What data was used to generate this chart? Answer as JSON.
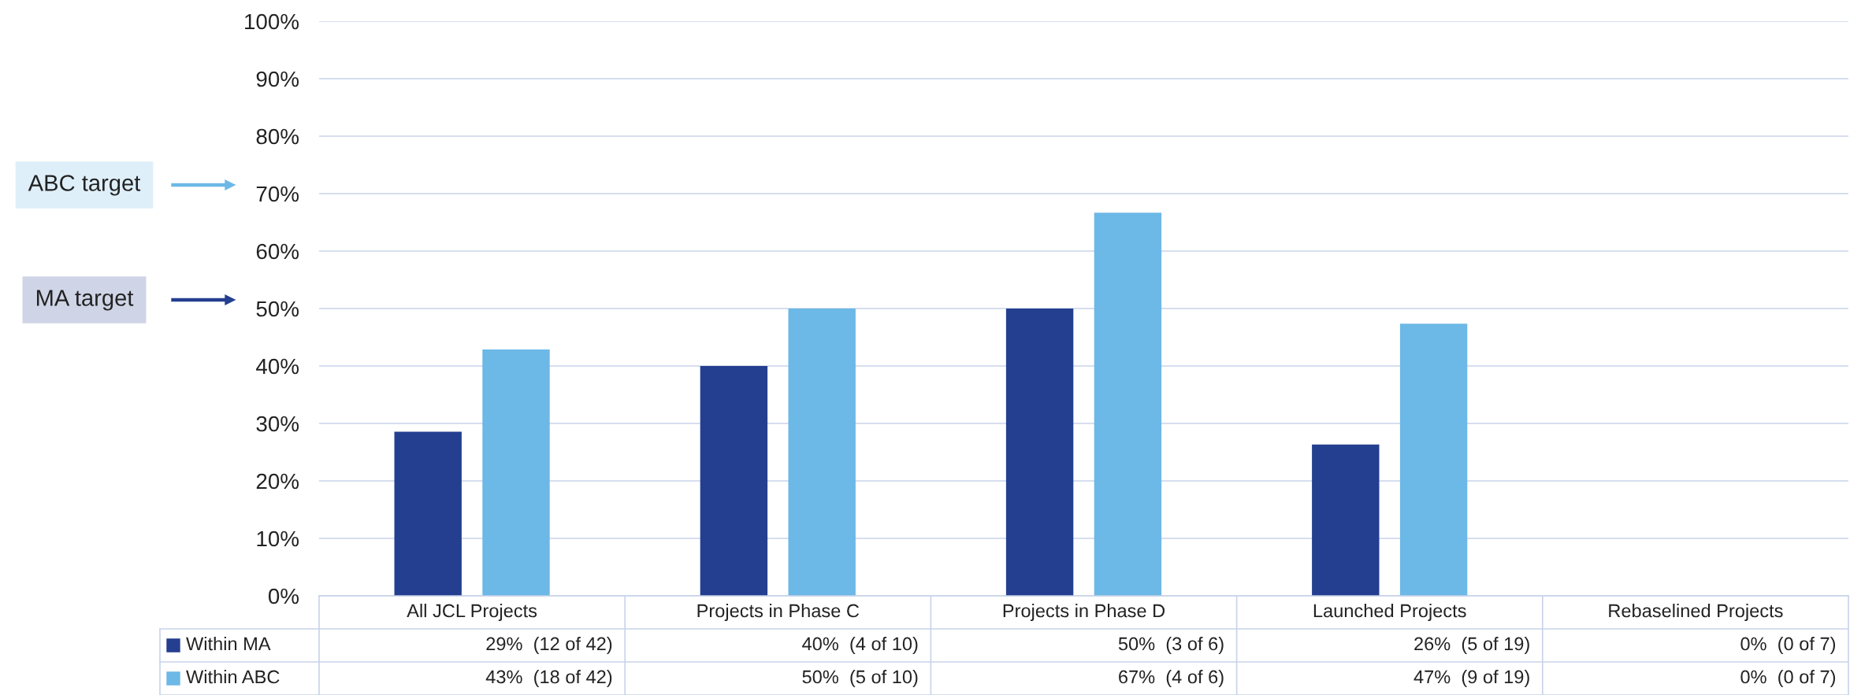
{
  "chart_data": {
    "type": "bar",
    "categories": [
      "All JCL Projects",
      "Projects in Phase C",
      "Projects in Phase D",
      "Launched Projects",
      "Rebaselined Projects"
    ],
    "series": [
      {
        "name": "Within MA",
        "color": "#243f8f",
        "values": [
          28.57,
          40,
          50,
          26.32,
          0
        ],
        "value_labels": [
          "29%  (12 of 42)",
          "40%  (4 of 10)",
          "50%  (3 of 6)",
          "26%  (5 of 19)",
          "0%  (0 of 7)"
        ]
      },
      {
        "name": "Within ABC",
        "color": "#6cb8e6",
        "values": [
          42.86,
          50,
          66.67,
          47.37,
          0
        ],
        "value_labels": [
          "43%  (18 of 42)",
          "50%  (5 of 10)",
          "67%  (4 of 6)",
          "47%  (9 of 19)",
          "0%  (0 of 7)"
        ]
      }
    ],
    "ylim": [
      0,
      100
    ],
    "yticks": [
      {
        "value": 0,
        "label": "0%"
      },
      {
        "value": 10,
        "label": "10%"
      },
      {
        "value": 20,
        "label": "20%"
      },
      {
        "value": 30,
        "label": "30%"
      },
      {
        "value": 40,
        "label": "40%"
      },
      {
        "value": 50,
        "label": "50%"
      },
      {
        "value": 60,
        "label": "60%"
      },
      {
        "value": 70,
        "label": "70%"
      },
      {
        "value": 80,
        "label": "80%"
      },
      {
        "value": 90,
        "label": "90%"
      },
      {
        "value": 100,
        "label": "100%"
      }
    ],
    "grid": "y",
    "legend": "bottom left",
    "annotations": [
      "ABC target",
      "MA target"
    ]
  }
}
